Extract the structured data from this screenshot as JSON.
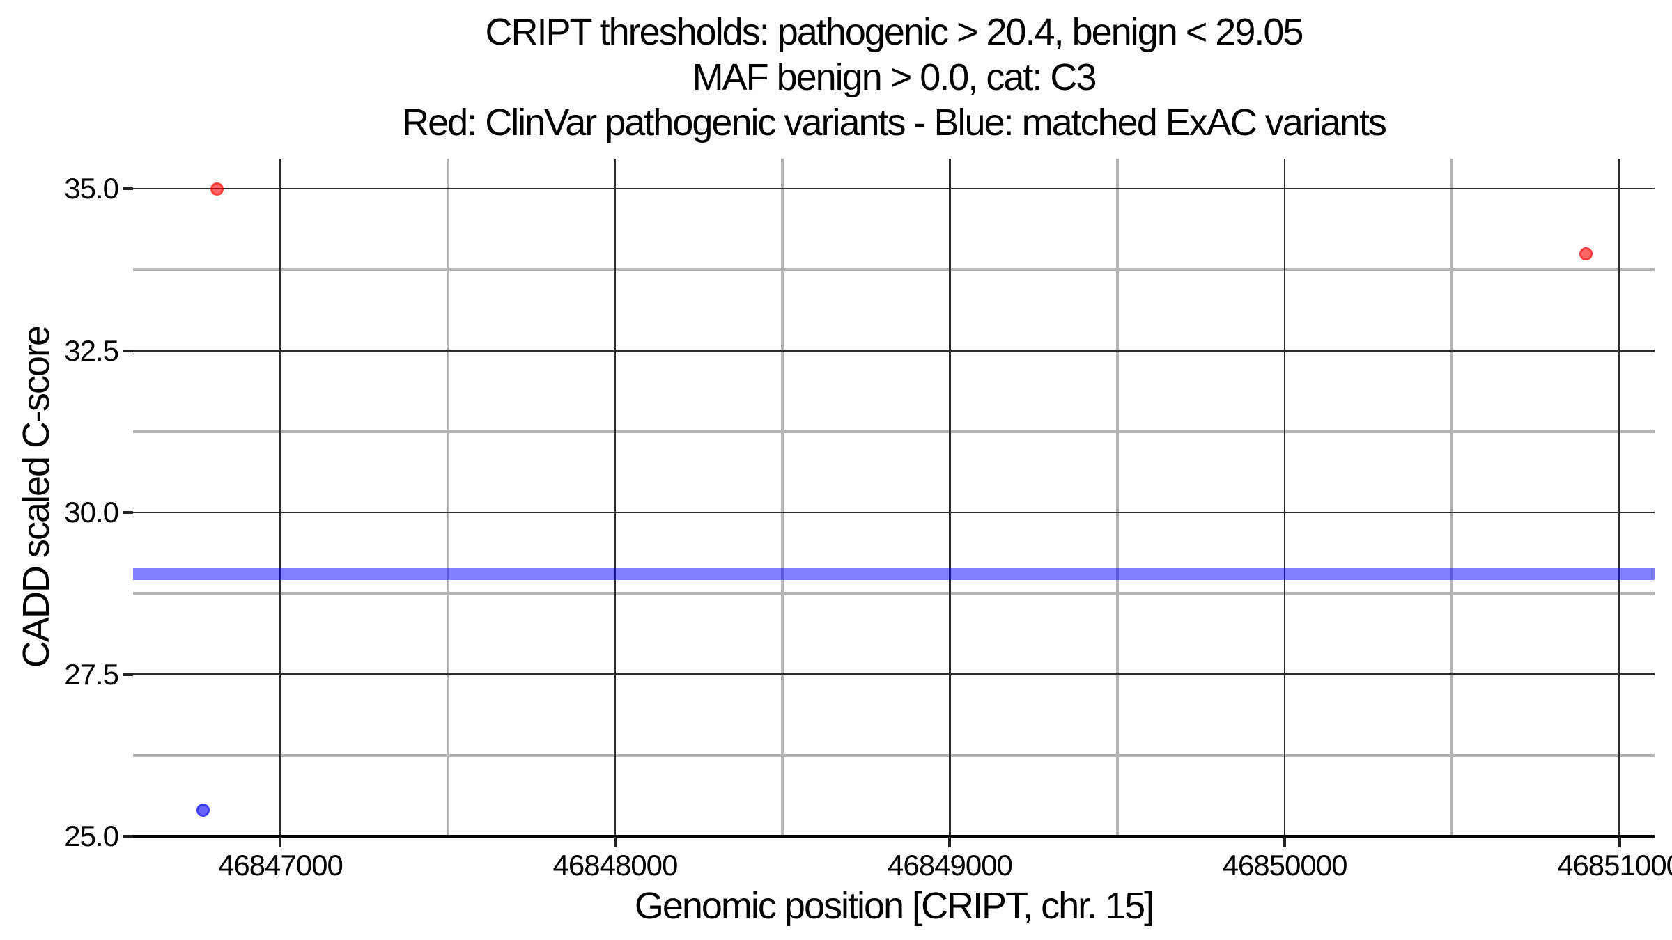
{
  "title": {
    "line1": "CRIPT thresholds: pathogenic > 20.4, benign < 29.05",
    "line2": "MAF benign > 0.0, cat: C3",
    "line3": "Red: ClinVar pathogenic variants - Blue: matched ExAC variants"
  },
  "chart_data": {
    "type": "scatter",
    "title": "CRIPT thresholds: pathogenic > 20.4, benign < 29.05 | MAF benign > 0.0, cat: C3 | Red: ClinVar pathogenic variants - Blue: matched ExAC variants",
    "xlabel": "Genomic position [CRIPT, chr. 15]",
    "ylabel": "CADD scaled C-score",
    "xlim": [
      46846560,
      46851105
    ],
    "ylim": [
      25.0,
      35.465
    ],
    "x_tick_values": [
      46847000,
      46848000,
      46849000,
      46850000,
      46851000
    ],
    "x_tick_labels": [
      "46847000",
      "46848000",
      "46849000",
      "46850000",
      "46851000"
    ],
    "x_minor_tick_values": [
      46847500,
      46848500,
      46849500,
      46850500
    ],
    "y_tick_values": [
      35.0,
      32.5,
      30.0,
      27.5,
      25.0
    ],
    "y_tick_labels": [
      "35.0",
      "32.5",
      "30.0",
      "27.5",
      "25.0"
    ],
    "y_minor_tick_values": [
      33.75,
      31.25,
      28.75,
      26.25
    ],
    "grid": "major dark thin lines, minor thick gray lines, no legend",
    "series": [
      {
        "name": "ClinVar pathogenic variants",
        "color": "#FF0000",
        "points": [
          {
            "x": 46846810,
            "y": 35.0
          },
          {
            "x": 46850900,
            "y": 34.0
          }
        ]
      },
      {
        "name": "matched ExAC variants",
        "color": "#0000FF",
        "points": [
          {
            "x": 46846770,
            "y": 25.4
          }
        ]
      }
    ],
    "threshold_line": {
      "y": 29.05,
      "meaning": "benign threshold < 29.05",
      "color": "#0000FF",
      "style": "thick semi-transparent horizontal band"
    }
  }
}
